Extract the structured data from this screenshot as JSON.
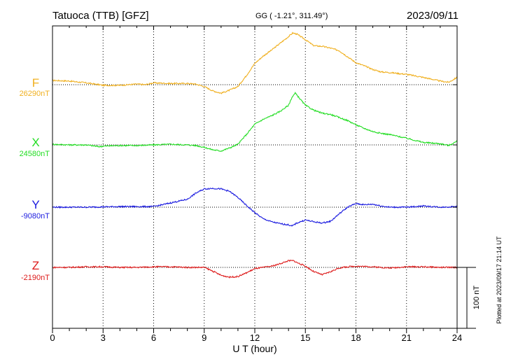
{
  "header": {
    "title": "Tatuoca (TTB)  [GFZ]",
    "coords": "GG ( -1.21°, 311.49°)",
    "date": "2023/09/11"
  },
  "footer": {
    "plotted": "Plotted at 2023/09/17 21:14 UT"
  },
  "chart_data": {
    "type": "line",
    "xlabel": "U T (hour)",
    "xlim": [
      0,
      24
    ],
    "xticks": [
      0,
      3,
      6,
      9,
      12,
      15,
      18,
      21,
      24
    ],
    "scale_bar": {
      "label": "100 nT",
      "value_nT": 100
    },
    "grid": true,
    "series": [
      {
        "name": "F",
        "baseline_label": "26290nT",
        "baseline_nT": 26290,
        "color": "#f0b020",
        "x": [
          0,
          1,
          2,
          3,
          4,
          5,
          5.5,
          6,
          7,
          8,
          8.5,
          9,
          9.5,
          10,
          10.5,
          11,
          11.5,
          12,
          12.5,
          13,
          13.5,
          14,
          14.25,
          14.5,
          15,
          15.5,
          16,
          16.5,
          17,
          17.5,
          18,
          18.5,
          19,
          19.5,
          20,
          21,
          22,
          23,
          23.5,
          24
        ],
        "values": [
          7,
          6,
          3,
          -1,
          -1,
          1,
          0,
          3,
          2,
          2,
          1,
          -3,
          -10,
          -14,
          -9,
          -3,
          15,
          35,
          47,
          57,
          68,
          79,
          85,
          83,
          74,
          64,
          63,
          60,
          56,
          46,
          36,
          31,
          25,
          21,
          20,
          17,
          12,
          6,
          4,
          12
        ]
      },
      {
        "name": "X",
        "baseline_label": "24580nT",
        "baseline_nT": 24580,
        "color": "#22dd22",
        "x": [
          0,
          1,
          2,
          2.8,
          3,
          4,
          5,
          6,
          7,
          8,
          8.5,
          9,
          9.5,
          10,
          10.5,
          11,
          11.5,
          12,
          12.5,
          13,
          13.5,
          14,
          14.2,
          14.4,
          15,
          15.5,
          16,
          16.5,
          17,
          17.5,
          18,
          18.5,
          19,
          19.5,
          20,
          21,
          22,
          23,
          23.5,
          24
        ],
        "values": [
          1,
          0,
          0,
          -3,
          -2,
          -1,
          -1,
          0,
          1,
          0,
          -1,
          -4,
          -8,
          -10,
          -5,
          1,
          17,
          34,
          42,
          48,
          55,
          65,
          78,
          85,
          65,
          57,
          52,
          50,
          45,
          40,
          33,
          27,
          22,
          19,
          17,
          11,
          4,
          2,
          -1,
          6
        ]
      },
      {
        "name": "Y",
        "baseline_label": "-9080nT",
        "baseline_nT": -9080,
        "color": "#1a1adf",
        "x": [
          0,
          2,
          4,
          6,
          7,
          8,
          8.5,
          9,
          9.5,
          10,
          10.5,
          11,
          11.5,
          12,
          12.5,
          13,
          13.5,
          14,
          14.2,
          14.5,
          15,
          15.5,
          16,
          16.5,
          17,
          17.5,
          18,
          18.5,
          19,
          19.5,
          20,
          21,
          22,
          23,
          24
        ],
        "values": [
          0,
          0,
          1,
          1,
          7,
          13,
          23,
          30,
          31,
          30,
          26,
          16,
          3,
          -9,
          -19,
          -24,
          -27,
          -29,
          -31,
          -26,
          -21,
          -24,
          -26,
          -23,
          -11,
          0,
          6,
          4,
          5,
          2,
          0,
          0,
          2,
          0,
          1
        ]
      },
      {
        "name": "Z",
        "baseline_label": "-2190nT",
        "baseline_nT": -2190,
        "color": "#dd1a1a",
        "x": [
          0,
          1,
          2,
          3,
          4,
          5,
          6,
          7,
          8,
          9,
          9.5,
          10,
          10.5,
          11,
          11.5,
          12,
          12.5,
          13,
          13.5,
          14,
          14.3,
          14.5,
          15,
          15.5,
          16,
          16.5,
          17,
          17.5,
          18,
          19,
          20,
          21,
          22,
          23,
          24
        ],
        "values": [
          0,
          0,
          1,
          1,
          0,
          0,
          1,
          1,
          0,
          0,
          -6,
          -13,
          -16,
          -15,
          -9,
          -2,
          0,
          2,
          6,
          11,
          11,
          8,
          2,
          -7,
          -12,
          -7,
          -1,
          1,
          2,
          1,
          -1,
          1,
          1,
          0,
          0
        ]
      }
    ]
  }
}
